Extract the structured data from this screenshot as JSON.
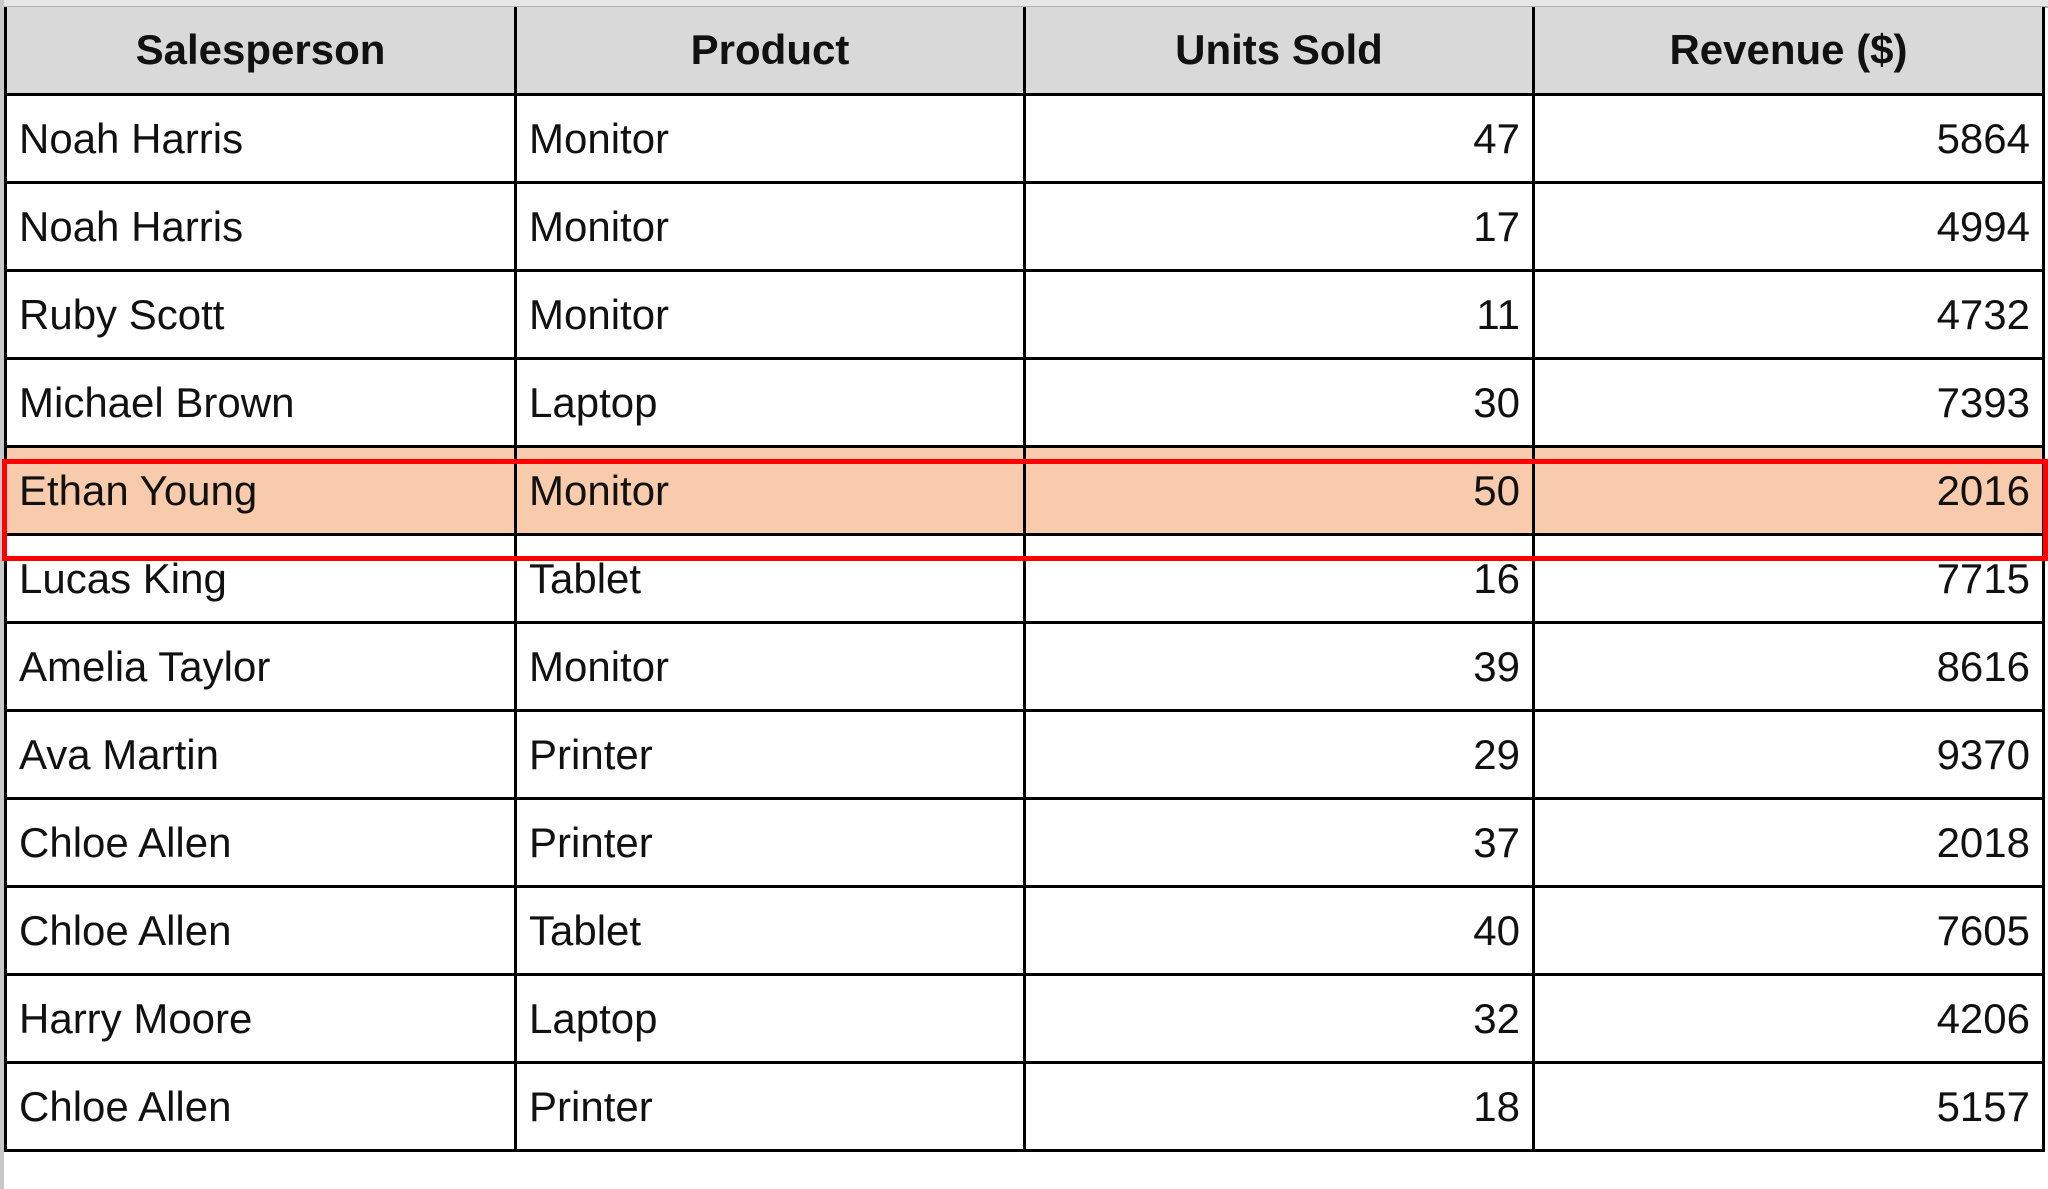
{
  "table": {
    "headers": [
      "Salesperson",
      "Product",
      "Units Sold",
      "Revenue ($)"
    ],
    "rows": [
      [
        "Noah Harris",
        "Monitor",
        "47",
        "5864"
      ],
      [
        "Noah Harris",
        "Monitor",
        "17",
        "4994"
      ],
      [
        "Ruby Scott",
        "Monitor",
        "11",
        "4732"
      ],
      [
        "Michael Brown",
        "Laptop",
        "30",
        "7393"
      ],
      [
        "Ethan Young",
        "Monitor",
        "50",
        "2016"
      ],
      [
        "Lucas King",
        "Tablet",
        "16",
        "7715"
      ],
      [
        "Amelia Taylor",
        "Monitor",
        "39",
        "8616"
      ],
      [
        "Ava Martin",
        "Printer",
        "29",
        "9370"
      ],
      [
        "Chloe Allen",
        "Printer",
        "37",
        "2018"
      ],
      [
        "Chloe Allen",
        "Tablet",
        "40",
        "7605"
      ],
      [
        "Harry Moore",
        "Laptop",
        "32",
        "4206"
      ],
      [
        "Chloe Allen",
        "Printer",
        "18",
        "5157"
      ]
    ],
    "highlighted_row": 4,
    "colors": {
      "header_bg": "#d9d9d9",
      "highlight_fill": "#f8cbad",
      "highlight_border": "#ff0000"
    }
  }
}
